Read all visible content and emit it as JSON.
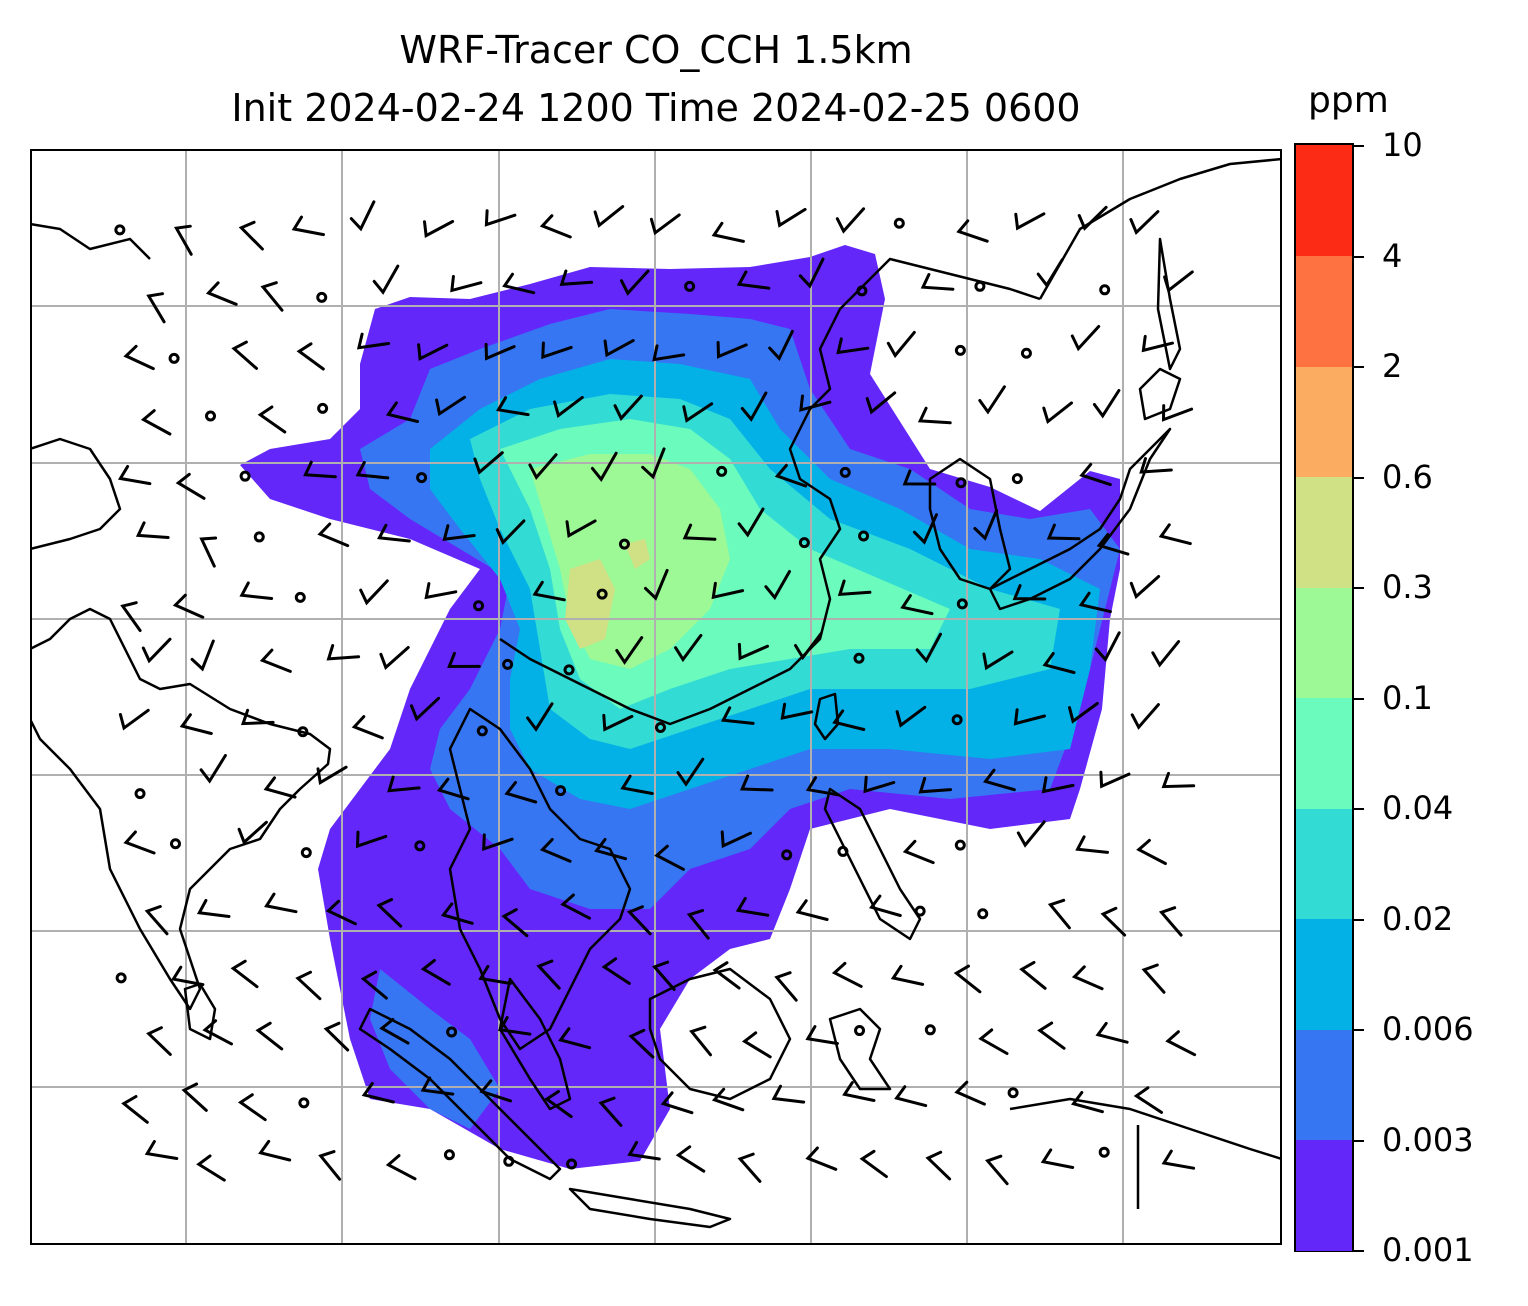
{
  "title": {
    "line1": "WRF-Tracer CO_CCH 1.5km",
    "line2": "Init 2024-02-24 1200 Time 2024-02-25 0600"
  },
  "colorbar": {
    "unit": "ppm",
    "levels": [
      "0.001",
      "0.003",
      "0.006",
      "0.02",
      "0.04",
      "0.1",
      "0.3",
      "0.6",
      "2",
      "4",
      "10"
    ],
    "colors": [
      "#6327fa",
      "#3676f2",
      "#03b1e7",
      "#33dbd5",
      "#6afbbd",
      "#9cf996",
      "#d0e084",
      "#fcac60",
      "#fe7140",
      "#fc2b15"
    ]
  },
  "map": {
    "gridlines": true,
    "grid_color": "#b0b0b0",
    "coastline_color": "#000000",
    "wind_barbs": true
  }
}
